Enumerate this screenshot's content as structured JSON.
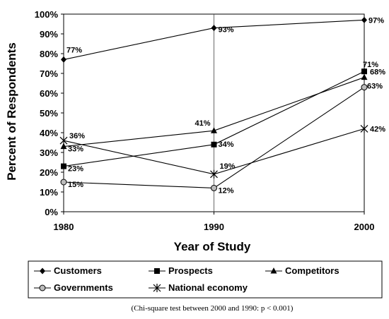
{
  "chart_data": {
    "type": "line",
    "title": "",
    "xlabel": "Year of Study",
    "ylabel": "Percent of Respondents",
    "x": [
      1980,
      1990,
      2000
    ],
    "ylim": [
      0,
      100
    ],
    "y_ticks": [
      "0%",
      "10%",
      "20%",
      "30%",
      "40%",
      "50%",
      "60%",
      "70%",
      "80%",
      "90%",
      "100%"
    ],
    "x_ticks": [
      "1980",
      "1990",
      "2000"
    ],
    "grid": "vertical lines at 1990 only",
    "legend_position": "bottom",
    "series": [
      {
        "name": "Customers",
        "marker": "diamond",
        "values": [
          77,
          93,
          97
        ],
        "labels": [
          "77%",
          "93%",
          "97%"
        ]
      },
      {
        "name": "Prospects",
        "marker": "square",
        "values": [
          23,
          34,
          71
        ],
        "labels": [
          "23%",
          "34%",
          "71%"
        ]
      },
      {
        "name": "Competitors",
        "marker": "triangle",
        "values": [
          33,
          41,
          68
        ],
        "labels": [
          "33%",
          "41%",
          "68%"
        ]
      },
      {
        "name": "Governments",
        "marker": "circle",
        "values": [
          15,
          12,
          63
        ],
        "labels": [
          "15%",
          "12%",
          "63%"
        ]
      },
      {
        "name": "National economy",
        "marker": "asterisk",
        "values": [
          36,
          19,
          42
        ],
        "labels": [
          "36%",
          "19%",
          "42%"
        ]
      }
    ],
    "footnote": "(Chi-square test between 2000 and 1990: p < 0.001)"
  }
}
